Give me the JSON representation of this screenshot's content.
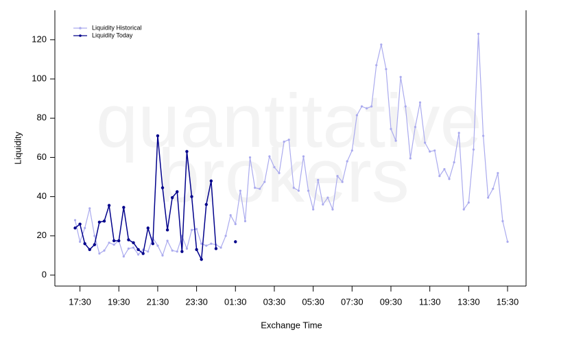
{
  "chart_data": {
    "type": "line",
    "xlabel": "Exchange Time",
    "ylabel": "Liquidity",
    "watermark": [
      "quantitative",
      "brokers"
    ],
    "categories": [
      null,
      "17:30",
      null,
      null,
      null,
      null,
      null,
      null,
      null,
      "19:30",
      null,
      null,
      null,
      null,
      null,
      null,
      null,
      "21:30",
      null,
      null,
      null,
      null,
      null,
      null,
      null,
      "23:30",
      null,
      null,
      null,
      null,
      null,
      null,
      null,
      "01:30",
      null,
      null,
      null,
      null,
      null,
      null,
      null,
      "03:30",
      null,
      null,
      null,
      null,
      null,
      null,
      null,
      "05:30",
      null,
      null,
      null,
      null,
      null,
      null,
      null,
      "07:30",
      null,
      null,
      null,
      null,
      null,
      null,
      null,
      "09:30",
      null,
      null,
      null,
      null,
      null,
      null,
      null,
      "11:30",
      null,
      null,
      null,
      null,
      null,
      null,
      null,
      "13:30",
      null,
      null,
      null,
      null,
      null,
      null,
      null,
      "15:30"
    ],
    "series": [
      {
        "name": "Liquidity Historical",
        "color": "#aaaaee",
        "values": [
          28,
          17,
          24,
          34,
          20,
          11,
          12.5,
          16.5,
          15.5,
          17.5,
          9.5,
          13.5,
          14,
          10.5,
          13,
          12,
          19,
          15,
          10,
          17.5,
          12.5,
          12,
          20,
          13.5,
          23,
          23.5,
          16,
          15,
          16,
          15.5,
          14,
          20,
          30.5,
          26,
          43,
          27.5,
          60,
          44.5,
          44,
          47.5,
          60.5,
          55,
          52,
          68,
          69,
          44.5,
          43,
          60.5,
          43,
          33.5,
          48.5,
          36,
          39.5,
          33.5,
          50.5,
          47.5,
          58,
          63.5,
          81.5,
          86,
          85,
          86,
          107,
          117.5,
          105,
          74.5,
          68.5,
          101,
          86,
          59.5,
          75.5,
          88,
          67.5,
          63,
          63.5,
          50.5,
          54,
          49,
          57.5,
          72.5,
          33.5,
          37,
          64,
          123,
          71,
          39.5,
          44,
          52,
          27.5,
          17
        ]
      },
      {
        "name": "Liquidity Today",
        "color": "#00008b",
        "values": [
          24,
          26,
          16,
          13,
          15.5,
          27,
          27.5,
          35.5,
          17.5,
          17.5,
          34.5,
          18,
          16.5,
          13,
          11,
          24,
          16,
          71,
          44.5,
          23,
          39.5,
          42.5,
          12,
          63,
          40,
          13,
          8,
          36,
          48,
          13.5,
          null,
          null,
          null,
          17,
          null,
          null,
          null,
          null,
          null,
          null,
          null,
          null,
          null,
          null,
          null,
          null,
          null,
          null,
          null,
          null,
          null,
          null,
          null,
          null,
          null,
          null,
          null,
          null,
          null,
          null,
          null,
          null,
          null,
          null,
          null,
          null,
          null,
          null,
          null,
          null,
          null,
          null,
          null,
          null,
          null,
          null,
          null,
          null,
          null,
          null,
          null,
          null,
          null,
          null,
          null,
          null,
          null,
          null,
          null,
          null
        ]
      }
    ],
    "ylim": [
      -5.6,
      135
    ],
    "yticks": [
      0,
      20,
      40,
      60,
      80,
      100,
      120
    ],
    "legend": "upper left"
  }
}
